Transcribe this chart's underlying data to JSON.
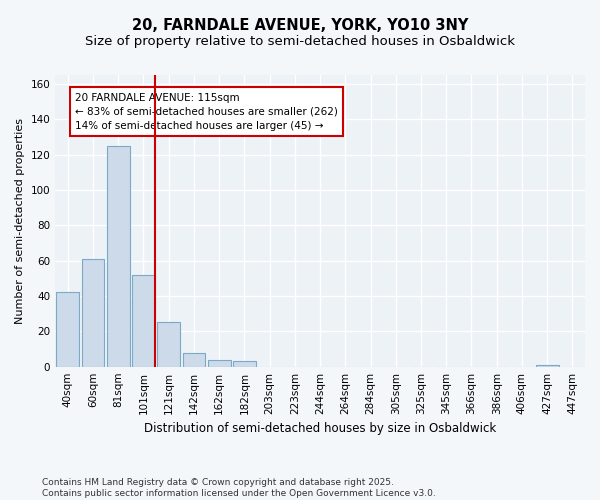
{
  "title": "20, FARNDALE AVENUE, YORK, YO10 3NY",
  "subtitle": "Size of property relative to semi-detached houses in Osbaldwick",
  "xlabel": "Distribution of semi-detached houses by size in Osbaldwick",
  "ylabel": "Number of semi-detached properties",
  "categories": [
    "40sqm",
    "60sqm",
    "81sqm",
    "101sqm",
    "121sqm",
    "142sqm",
    "162sqm",
    "182sqm",
    "203sqm",
    "223sqm",
    "244sqm",
    "264sqm",
    "284sqm",
    "305sqm",
    "325sqm",
    "345sqm",
    "366sqm",
    "386sqm",
    "406sqm",
    "427sqm",
    "447sqm"
  ],
  "values": [
    42,
    61,
    125,
    52,
    25,
    8,
    4,
    3,
    0,
    0,
    0,
    0,
    0,
    0,
    0,
    0,
    0,
    0,
    0,
    1,
    0
  ],
  "bar_color": "#ccdaea",
  "bar_edge_color": "#7aaac8",
  "vline_color": "#cc0000",
  "annotation_text": "20 FARNDALE AVENUE: 115sqm\n← 83% of semi-detached houses are smaller (262)\n14% of semi-detached houses are larger (45) →",
  "annotation_box_color": "#cc0000",
  "ylim": [
    0,
    165
  ],
  "yticks": [
    0,
    20,
    40,
    60,
    80,
    100,
    120,
    140,
    160
  ],
  "footer": "Contains HM Land Registry data © Crown copyright and database right 2025.\nContains public sector information licensed under the Open Government Licence v3.0.",
  "bg_color": "#f4f7fa",
  "plot_bg_color": "#edf2f7",
  "grid_color": "#ffffff",
  "title_fontsize": 10.5,
  "subtitle_fontsize": 9.5,
  "axis_label_fontsize": 8,
  "tick_fontsize": 7.5,
  "footer_fontsize": 6.5,
  "annotation_fontsize": 7.5
}
